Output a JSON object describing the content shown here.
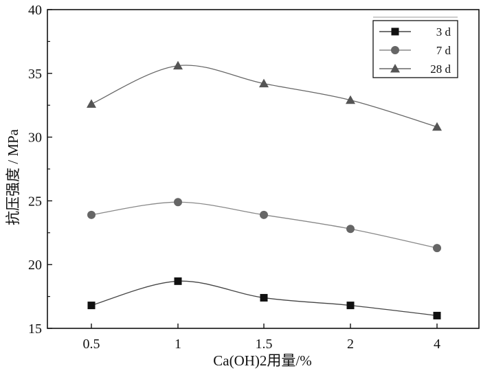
{
  "chart_data": {
    "type": "line",
    "categories": [
      "0.5",
      "1",
      "1.5",
      "2",
      "4"
    ],
    "xlabel": "Ca(OH)2用量/%",
    "ylabel": "抗压强度 / MPa",
    "ylim": [
      15,
      40
    ],
    "yticks": [
      "15",
      "20",
      "25",
      "30",
      "35",
      "40"
    ],
    "grid": false,
    "legend_position": "top-right",
    "series": [
      {
        "name": "3 d",
        "marker": "square",
        "values": [
          16.8,
          18.7,
          17.4,
          16.8,
          16.0
        ],
        "color": "#111111",
        "line_color": "#444444"
      },
      {
        "name": "7 d",
        "marker": "circle",
        "values": [
          23.9,
          24.9,
          23.9,
          22.8,
          21.3
        ],
        "color": "#666666",
        "line_color": "#888888"
      },
      {
        "name": "28 d",
        "marker": "triangle",
        "values": [
          32.6,
          35.6,
          34.2,
          32.9,
          30.8
        ],
        "color": "#555555",
        "line_color": "#666666"
      }
    ]
  }
}
